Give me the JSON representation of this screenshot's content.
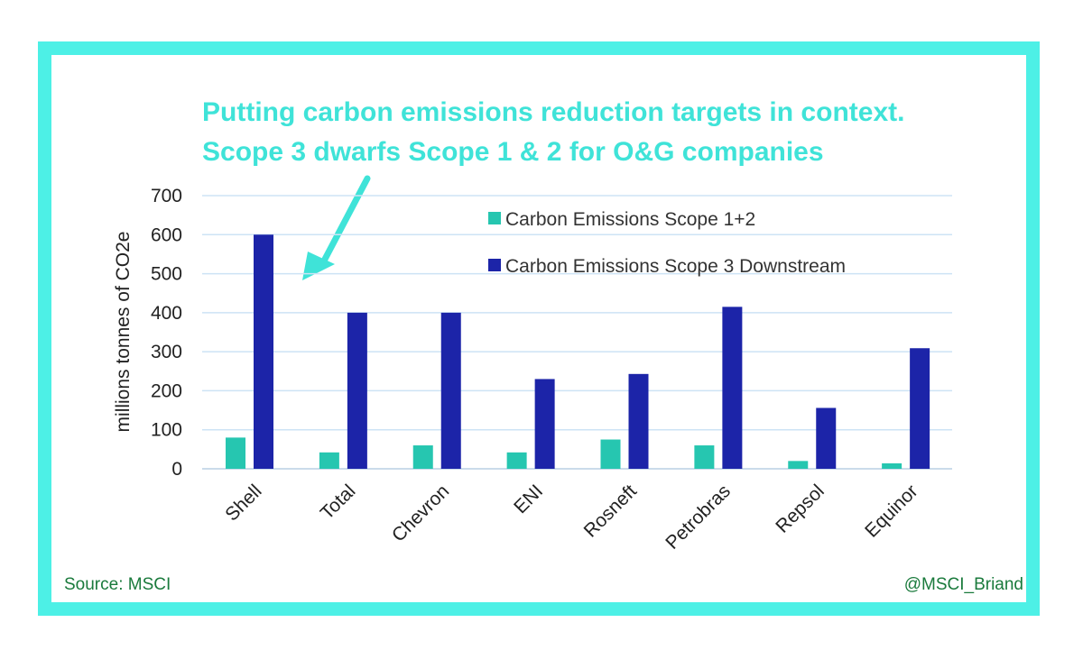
{
  "title_lines": [
    "Putting carbon emissions reduction targets in context.",
    "Scope 3 dwarfs Scope 1 & 2 for O&G companies"
  ],
  "footer": {
    "source": "Source: MSCI",
    "handle": "@MSCI_Briand"
  },
  "colors": {
    "frame": "#4df0e6",
    "title": "#3fe3d8",
    "scope12": "#26c6b0",
    "scope3": "#1c24a8",
    "grid": "#cde3f5",
    "footer": "#1a7a3c"
  },
  "chart_data": {
    "type": "bar",
    "title": "",
    "xlabel": "",
    "ylabel": "millions tonnes of CO2e",
    "ylim": [
      0,
      700
    ],
    "yticks": [
      0,
      100,
      200,
      300,
      400,
      500,
      600,
      700
    ],
    "grid": true,
    "legend_position": "top-right",
    "categories": [
      "Shell",
      "Total",
      "Chevron",
      "ENI",
      "Rosneft",
      "Petrobras",
      "Repsol",
      "Equinor"
    ],
    "series": [
      {
        "name": "Carbon Emissions Scope 1+2",
        "color": "#26c6b0",
        "values": [
          80,
          42,
          60,
          42,
          75,
          60,
          20,
          14
        ]
      },
      {
        "name": "Carbon Emissions Scope 3 Downstream",
        "color": "#1c24a8",
        "values": [
          600,
          400,
          400,
          230,
          243,
          415,
          156,
          309
        ]
      }
    ]
  }
}
